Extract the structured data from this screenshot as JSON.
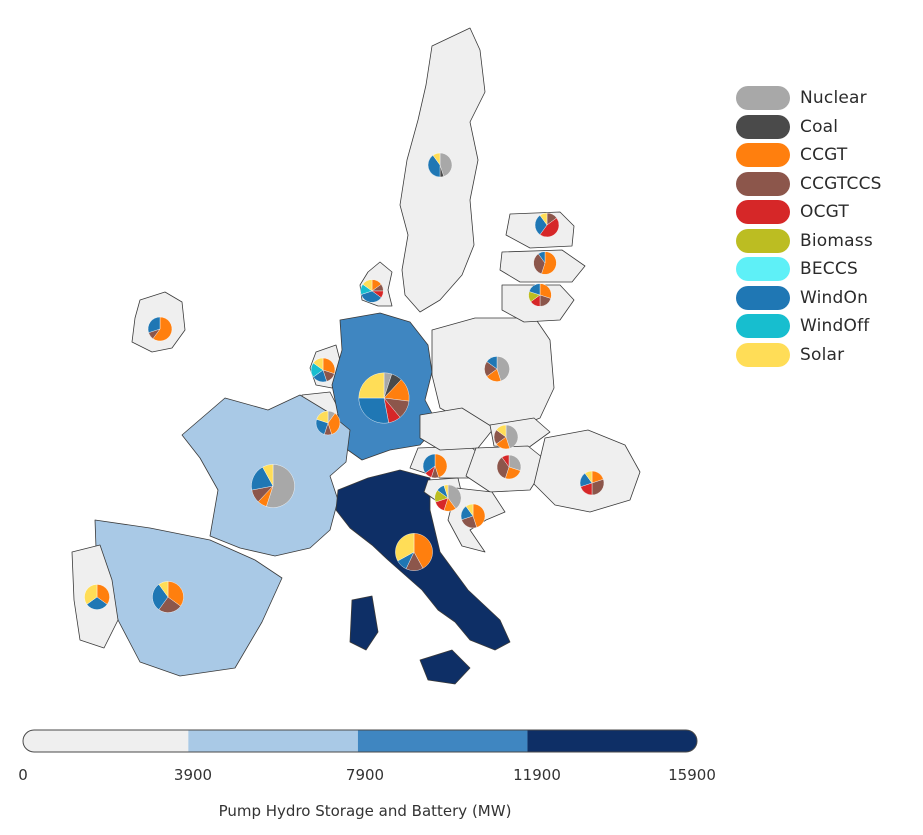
{
  "legend": {
    "items": [
      {
        "label": "Nuclear",
        "color": "#a8a8a8"
      },
      {
        "label": "Coal",
        "color": "#4a4a4a"
      },
      {
        "label": "CCGT",
        "color": "#ff7f0e"
      },
      {
        "label": "CCGTCCS",
        "color": "#8c564b"
      },
      {
        "label": "OCGT",
        "color": "#d62728"
      },
      {
        "label": "Biomass",
        "color": "#bcbd22"
      },
      {
        "label": "BECCS",
        "color": "#5ef0f7"
      },
      {
        "label": "WindOn",
        "color": "#1f77b4"
      },
      {
        "label": "WindOff",
        "color": "#17becf"
      },
      {
        "label": "Solar",
        "color": "#ffdd57"
      }
    ]
  },
  "colorbar": {
    "title": "Pump Hydro Storage and Battery (MW)",
    "ticks": [
      "0",
      "3900",
      "7900",
      "11900",
      "15900"
    ],
    "bins": [
      {
        "from": 0,
        "to": 3900,
        "color": "#efefef"
      },
      {
        "from": 3900,
        "to": 7900,
        "color": "#a9c9e6"
      },
      {
        "from": 7900,
        "to": 11900,
        "color": "#3f86c1"
      },
      {
        "from": 11900,
        "to": 15900,
        "color": "#0e2f66"
      }
    ]
  },
  "countries": [
    {
      "name": "Sweden",
      "storage_class": 0
    },
    {
      "name": "Denmark",
      "storage_class": 0
    },
    {
      "name": "Ireland",
      "storage_class": 0
    },
    {
      "name": "Netherlands",
      "storage_class": 0
    },
    {
      "name": "Belgium",
      "storage_class": 0
    },
    {
      "name": "Germany",
      "storage_class": 2
    },
    {
      "name": "Poland",
      "storage_class": 0
    },
    {
      "name": "France",
      "storage_class": 1
    },
    {
      "name": "Spain",
      "storage_class": 1
    },
    {
      "name": "Portugal",
      "storage_class": 0
    },
    {
      "name": "Italy",
      "storage_class": 3
    },
    {
      "name": "Austria",
      "storage_class": 0
    },
    {
      "name": "Czechia",
      "storage_class": 0
    },
    {
      "name": "Slovakia",
      "storage_class": 0
    },
    {
      "name": "Hungary",
      "storage_class": 0
    },
    {
      "name": "Romania",
      "storage_class": 0
    },
    {
      "name": "Slovenia",
      "storage_class": 0
    },
    {
      "name": "Croatia",
      "storage_class": 0
    },
    {
      "name": "Estonia",
      "storage_class": 0
    },
    {
      "name": "Latvia",
      "storage_class": 0
    },
    {
      "name": "Lithuania",
      "storage_class": 0
    }
  ],
  "pies": [
    {
      "country": "Sweden",
      "size": 1.0,
      "shares": {
        "Nuclear": 0.45,
        "Coal": 0.05,
        "WindOn": 0.4,
        "Solar": 0.1
      }
    },
    {
      "country": "Estonia",
      "size": 1.0,
      "shares": {
        "OCGT": 0.45,
        "CCGTCCS": 0.15,
        "WindOn": 0.3,
        "Solar": 0.1
      }
    },
    {
      "country": "Latvia",
      "size": 0.95,
      "shares": {
        "CCGT": 0.55,
        "CCGTCCS": 0.35,
        "WindOn": 0.1
      }
    },
    {
      "country": "Lithuania",
      "size": 0.95,
      "shares": {
        "CCGT": 0.3,
        "CCGTCCS": 0.2,
        "OCGT": 0.15,
        "Biomass": 0.15,
        "WindOn": 0.2
      }
    },
    {
      "country": "Denmark",
      "size": 0.95,
      "shares": {
        "WindOn": 0.35,
        "WindOff": 0.15,
        "CCGT": 0.15,
        "OCGT": 0.1,
        "Solar": 0.15,
        "CCGTCCS": 0.1
      }
    },
    {
      "country": "Ireland",
      "size": 1.0,
      "shares": {
        "CCGT": 0.6,
        "WindOn": 0.3,
        "CCGTCCS": 0.1
      }
    },
    {
      "country": "Netherlands",
      "size": 1.0,
      "shares": {
        "CCGT": 0.3,
        "WindOff": 0.2,
        "WindOn": 0.2,
        "Solar": 0.15,
        "CCGTCCS": 0.15
      }
    },
    {
      "country": "Belgium",
      "size": 1.0,
      "shares": {
        "CCGT": 0.35,
        "WindOn": 0.25,
        "Solar": 0.2,
        "Nuclear": 0.1,
        "CCGTCCS": 0.1
      }
    },
    {
      "country": "Germany",
      "size": 2.1,
      "shares": {
        "Solar": 0.25,
        "WindOn": 0.28,
        "CCGTCCS": 0.12,
        "OCGT": 0.08,
        "CCGT": 0.15,
        "Coal": 0.07,
        "Nuclear": 0.05
      }
    },
    {
      "country": "Poland",
      "size": 1.05,
      "shares": {
        "Nuclear": 0.45,
        "CCGT": 0.2,
        "CCGTCCS": 0.2,
        "WindOn": 0.15
      }
    },
    {
      "country": "Czechia",
      "size": 1.0,
      "shares": {
        "Nuclear": 0.45,
        "CCGTCCS": 0.2,
        "CCGT": 0.2,
        "Solar": 0.15
      }
    },
    {
      "country": "Austria",
      "size": 1.0,
      "shares": {
        "CCGT": 0.45,
        "WindOn": 0.35,
        "CCGTCCS": 0.1,
        "OCGT": 0.1
      }
    },
    {
      "country": "Hungary",
      "size": 1.0,
      "shares": {
        "Nuclear": 0.3,
        "CCGTCCS": 0.35,
        "CCGT": 0.25,
        "OCGT": 0.1
      }
    },
    {
      "country": "Slovenia",
      "size": 1.1,
      "shares": {
        "Nuclear": 0.4,
        "Biomass": 0.15,
        "OCGT": 0.15,
        "CCGT": 0.15,
        "WindOn": 0.1,
        "Solar": 0.05
      }
    },
    {
      "country": "Croatia",
      "size": 1.0,
      "shares": {
        "CCGT": 0.45,
        "CCGTCCS": 0.25,
        "WindOn": 0.2,
        "Solar": 0.1
      }
    },
    {
      "country": "Romania",
      "size": 1.0,
      "shares": {
        "CCGTCCS": 0.3,
        "OCGT": 0.2,
        "CCGT": 0.2,
        "WindOn": 0.2,
        "Solar": 0.1
      }
    },
    {
      "country": "France",
      "size": 1.8,
      "shares": {
        "Nuclear": 0.55,
        "WindOn": 0.2,
        "CCGTCCS": 0.1,
        "CCGT": 0.07,
        "Solar": 0.08
      }
    },
    {
      "country": "Spain",
      "size": 1.3,
      "shares": {
        "CCGT": 0.35,
        "CCGTCCS": 0.25,
        "WindOn": 0.3,
        "Solar": 0.1
      }
    },
    {
      "country": "Portugal",
      "size": 1.05,
      "shares": {
        "CCGT": 0.35,
        "WindOn": 0.3,
        "Solar": 0.35
      }
    },
    {
      "country": "Italy",
      "size": 1.55,
      "shares": {
        "CCGT": 0.42,
        "Solar": 0.33,
        "CCGTCCS": 0.15,
        "WindOn": 0.1
      }
    }
  ]
}
